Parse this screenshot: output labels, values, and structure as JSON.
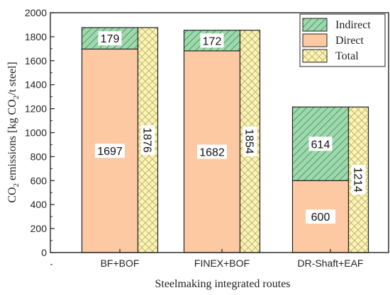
{
  "chart_data": {
    "type": "bar",
    "categories": [
      "BF+BOF",
      "FINEX+BOF",
      "DR-Shaft+EAF"
    ],
    "series": [
      {
        "name": "Direct",
        "values": [
          1697,
          1682,
          600
        ],
        "color": "#fcc9a3"
      },
      {
        "name": "Indirect",
        "values": [
          179,
          172,
          614
        ],
        "color": "#9ed9ad"
      },
      {
        "name": "Total",
        "values": [
          1876,
          1854,
          1214
        ],
        "color": "#fcf4b6"
      }
    ],
    "stacked_series": [
      "Direct",
      "Indirect"
    ],
    "title": "",
    "xlabel": "Steelmaking integrated routes",
    "ylabel_parts": [
      "CO",
      "2",
      " emissions [kg CO",
      "2",
      "/t steel]"
    ],
    "ylim": [
      0,
      2000
    ],
    "yticks": [
      0,
      200,
      400,
      600,
      800,
      1000,
      1200,
      1400,
      1600,
      1800,
      2000
    ],
    "legend": {
      "placement": "top-right",
      "order": [
        "Indirect",
        "Direct",
        "Total"
      ]
    },
    "grid": false
  }
}
